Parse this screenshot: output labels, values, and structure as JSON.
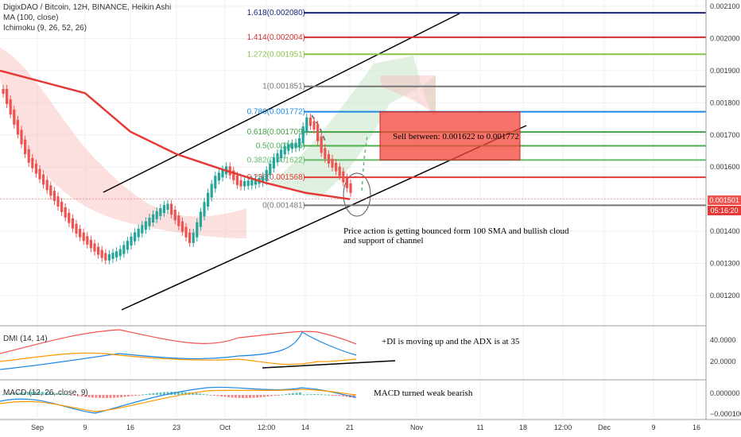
{
  "legend": {
    "title": "DigixDAO / Bitcoin, 12H, BINANCE, Heikin Ashi",
    "ma": "MA (100, close)",
    "ichimoku": "Ichimoku (9, 26, 52, 26)",
    "dmi": "DMI (14, 14)",
    "macd": "MACD (12, 26, close, 9)"
  },
  "price_axis": [
    "0.002100",
    "0.002000",
    "0.001900",
    "0.001800",
    "0.001700",
    "0.001600",
    "0.001500",
    "0.001400",
    "0.001300",
    "0.001200"
  ],
  "dmi_axis": [
    "40.0000",
    "20.0000"
  ],
  "macd_axis": [
    "0.000000",
    "−0.000100"
  ],
  "time_axis": [
    "Sep",
    "9",
    "16",
    "23",
    "Oct",
    "12:00",
    "14",
    "21",
    "Nov",
    "11",
    "18",
    "12:00",
    "Dec",
    "9",
    "16"
  ],
  "current_price": {
    "value": "0.001501",
    "countdown": "05:16:20",
    "color": "#ef5350",
    "countdown_color": "#e53935"
  },
  "fib_levels": [
    {
      "label": "1.618(0.002080)",
      "price": 0.00208,
      "color": "#1a237e"
    },
    {
      "label": "1.414(0.002004)",
      "price": 0.002004,
      "color": "#d32f2f"
    },
    {
      "label": "1.272(0.001951)",
      "price": 0.001951,
      "color": "#8bc34a"
    },
    {
      "label": "1(0.001851)",
      "price": 0.001851,
      "color": "#777777"
    },
    {
      "label": "0.786(0.001772)",
      "price": 0.001772,
      "color": "#1e88e5"
    },
    {
      "label": "0.618(0.001709)",
      "price": 0.001709,
      "color": "#43a047"
    },
    {
      "label": "0.5(0.001666)",
      "price": 0.001666,
      "color": "#4caf50"
    },
    {
      "label": "0.382(0.001622)",
      "price": 0.001622,
      "color": "#66bb6a"
    },
    {
      "label": "0.236(0.001568)",
      "price": 0.001568,
      "color": "#e53935"
    },
    {
      "label": "0(0.001481)",
      "price": 0.001481,
      "color": "#777777"
    }
  ],
  "sell_box": {
    "label": "Sell between: 0.001622 to 0.001772",
    "color": "#f44336"
  },
  "annotations": {
    "price_action": "Price action is getting bounced form 100 SMA and bullish cloud and support of channel",
    "dmi_note": "+DI is moving up and the ADX is at 35",
    "macd_note": "MACD turned weak bearish"
  },
  "chart_data": {
    "type": "line",
    "title": "DigixDAO / Bitcoin, 12H, BINANCE, Heikin Ashi",
    "ylim": [
      0.00112,
      0.00212
    ],
    "ma100": {
      "x": [
        "Sep",
        "9",
        "16",
        "23",
        "Oct",
        "12:00",
        "14",
        "21"
      ],
      "values": [
        0.0019,
        0.00183,
        0.00171,
        0.00164,
        0.00159,
        0.00155,
        0.00152,
        0.0015
      ]
    },
    "approx_close": {
      "x": [
        "Sep",
        "9",
        "16",
        "23",
        "Oct",
        "12:00",
        "14",
        "21"
      ],
      "values": [
        0.00175,
        0.0015,
        0.00132,
        0.00147,
        0.00163,
        0.00155,
        0.0018,
        0.0015
      ]
    }
  }
}
